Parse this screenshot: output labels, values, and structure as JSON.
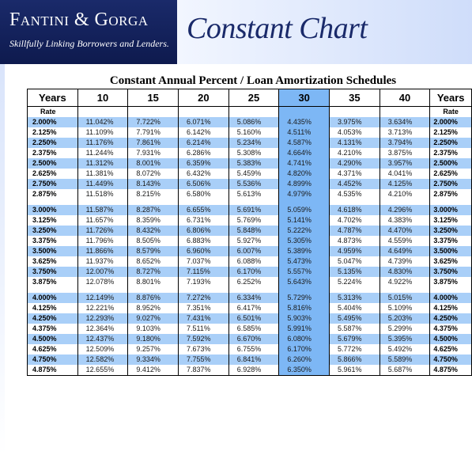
{
  "header": {
    "brand_name": "Fantini & Gorga",
    "tagline": "Skillfully Linking Borrowers and Lenders.",
    "title": "Constant Chart"
  },
  "subtitle": "Constant Annual Percent / Loan Amortization Schedules",
  "table": {
    "years_label": "Years",
    "rate_label": "Rate",
    "columns": [
      "10",
      "15",
      "20",
      "25",
      "30",
      "35",
      "40"
    ],
    "groups": [
      [
        [
          "2.000%",
          "11.042%",
          "7.722%",
          "6.071%",
          "5.086%",
          "4.435%",
          "3.975%",
          "3.634%"
        ],
        [
          "2.125%",
          "11.109%",
          "7.791%",
          "6.142%",
          "5.160%",
          "4.511%",
          "4.053%",
          "3.713%"
        ],
        [
          "2.250%",
          "11.176%",
          "7.861%",
          "6.214%",
          "5.234%",
          "4.587%",
          "4.131%",
          "3.794%"
        ],
        [
          "2.375%",
          "11.244%",
          "7.931%",
          "6.286%",
          "5.308%",
          "4.664%",
          "4.210%",
          "3.875%"
        ],
        [
          "2.500%",
          "11.312%",
          "8.001%",
          "6.359%",
          "5.383%",
          "4.741%",
          "4.290%",
          "3.957%"
        ],
        [
          "2.625%",
          "11.381%",
          "8.072%",
          "6.432%",
          "5.459%",
          "4.820%",
          "4.371%",
          "4.041%"
        ],
        [
          "2.750%",
          "11.449%",
          "8.143%",
          "6.506%",
          "5.536%",
          "4.899%",
          "4.452%",
          "4.125%"
        ],
        [
          "2.875%",
          "11.518%",
          "8.215%",
          "6.580%",
          "5.613%",
          "4.979%",
          "4.535%",
          "4.210%"
        ]
      ],
      [
        [
          "3.000%",
          "11.587%",
          "8.287%",
          "6.655%",
          "5.691%",
          "5.059%",
          "4.618%",
          "4.296%"
        ],
        [
          "3.125%",
          "11.657%",
          "8.359%",
          "6.731%",
          "5.769%",
          "5.141%",
          "4.702%",
          "4.383%"
        ],
        [
          "3.250%",
          "11.726%",
          "8.432%",
          "6.806%",
          "5.848%",
          "5.222%",
          "4.787%",
          "4.470%"
        ],
        [
          "3.375%",
          "11.796%",
          "8.505%",
          "6.883%",
          "5.927%",
          "5.305%",
          "4.873%",
          "4.559%"
        ],
        [
          "3.500%",
          "11.866%",
          "8.579%",
          "6.960%",
          "6.007%",
          "5.389%",
          "4.959%",
          "4.649%"
        ],
        [
          "3.625%",
          "11.937%",
          "8.652%",
          "7.037%",
          "6.088%",
          "5.473%",
          "5.047%",
          "4.739%"
        ],
        [
          "3.750%",
          "12.007%",
          "8.727%",
          "7.115%",
          "6.170%",
          "5.557%",
          "5.135%",
          "4.830%"
        ],
        [
          "3.875%",
          "12.078%",
          "8.801%",
          "7.193%",
          "6.252%",
          "5.643%",
          "5.224%",
          "4.922%"
        ]
      ],
      [
        [
          "4.000%",
          "12.149%",
          "8.876%",
          "7.272%",
          "6.334%",
          "5.729%",
          "5.313%",
          "5.015%"
        ],
        [
          "4.125%",
          "12.221%",
          "8.952%",
          "7.351%",
          "6.417%",
          "5.816%",
          "5.404%",
          "5.109%"
        ],
        [
          "4.250%",
          "12.293%",
          "9.027%",
          "7.431%",
          "6.501%",
          "5.903%",
          "5.495%",
          "5.203%"
        ],
        [
          "4.375%",
          "12.364%",
          "9.103%",
          "7.511%",
          "6.585%",
          "5.991%",
          "5.587%",
          "5.299%"
        ],
        [
          "4.500%",
          "12.437%",
          "9.180%",
          "7.592%",
          "6.670%",
          "6.080%",
          "5.679%",
          "5.395%"
        ],
        [
          "4.625%",
          "12.509%",
          "9.257%",
          "7.673%",
          "6.755%",
          "6.170%",
          "5.772%",
          "5.492%"
        ],
        [
          "4.750%",
          "12.582%",
          "9.334%",
          "7.755%",
          "6.841%",
          "6.260%",
          "5.866%",
          "5.589%"
        ],
        [
          "4.875%",
          "12.655%",
          "9.412%",
          "7.837%",
          "6.928%",
          "6.350%",
          "5.961%",
          "5.687%"
        ]
      ]
    ]
  },
  "colors": {
    "brand_bg": "#0e1a4e",
    "stripe": "#a9cff8",
    "highlight_column": "#7db7f5"
  }
}
